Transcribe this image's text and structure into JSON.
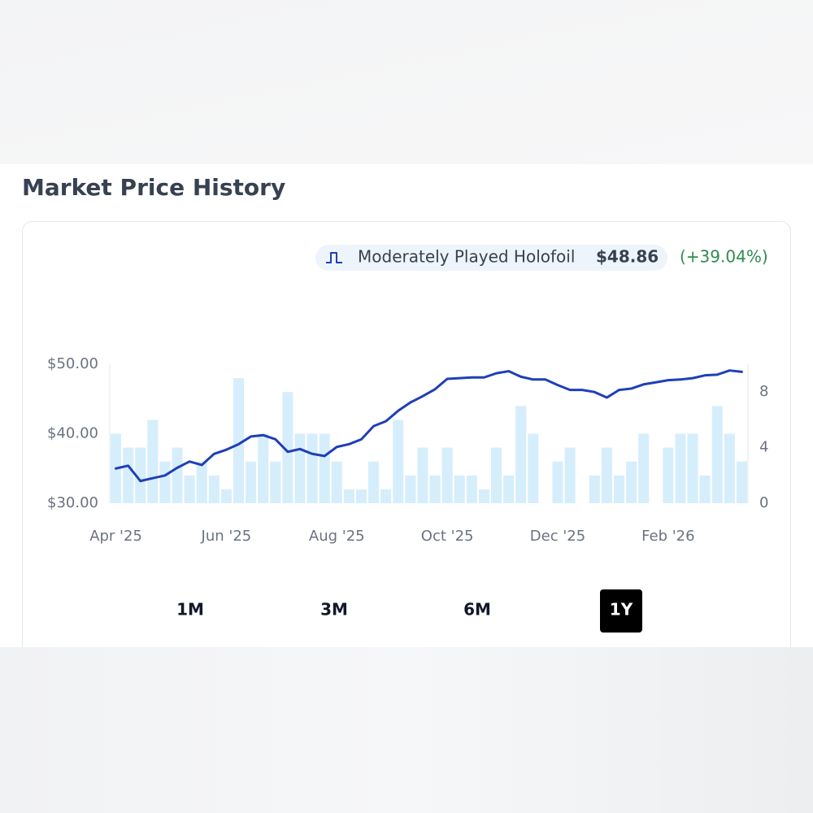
{
  "header": {
    "title": "Market Price History"
  },
  "chart_data": {
    "type": "line",
    "price_label": "$48.86",
    "change_label": "(+39.04%)",
    "categories": [
      "Apr '25",
      null,
      null,
      null,
      null,
      null,
      null,
      null,
      null,
      "Jun '25",
      null,
      null,
      null,
      null,
      null,
      null,
      null,
      null,
      "Aug '25",
      null,
      null,
      null,
      null,
      null,
      null,
      null,
      null,
      "Oct '25",
      null,
      null,
      null,
      null,
      null,
      null,
      null,
      null,
      "Dec '25",
      null,
      null,
      null,
      null,
      null,
      null,
      null,
      null,
      "Feb '26",
      null,
      null,
      null,
      null,
      null,
      null
    ],
    "series": [
      {
        "name": "Moderately Played Holofoil",
        "type": "line",
        "color": "#1f3fb8",
        "values": [
          35.0,
          35.4,
          33.2,
          33.6,
          34.0,
          35.1,
          36.0,
          35.5,
          37.1,
          37.7,
          38.5,
          39.6,
          39.8,
          39.2,
          37.4,
          37.8,
          37.1,
          36.8,
          38.1,
          38.5,
          39.2,
          41.1,
          41.8,
          43.3,
          44.5,
          45.4,
          46.4,
          47.9,
          48.0,
          48.1,
          48.1,
          48.7,
          49.0,
          48.2,
          47.8,
          47.8,
          47.0,
          46.3,
          46.3,
          46.0,
          45.2,
          46.3,
          46.5,
          47.1,
          47.4,
          47.7,
          47.8,
          48.0,
          48.4,
          48.5,
          49.1,
          48.9
        ]
      },
      {
        "type": "bar",
        "axis": "y2",
        "color": "#d6eefc",
        "values": [
          5,
          4,
          4,
          6,
          3,
          4,
          2,
          3,
          2,
          1,
          9,
          3,
          5,
          3,
          8,
          5,
          5,
          5,
          3,
          1,
          1,
          3,
          1,
          6,
          2,
          4,
          2,
          4,
          2,
          2,
          1,
          4,
          2,
          7,
          5,
          0,
          3,
          4,
          0,
          2,
          4,
          2,
          3,
          5,
          0,
          4,
          5,
          5,
          2,
          7,
          5,
          3
        ]
      }
    ],
    "ylim": [
      30,
      50
    ],
    "yticks": [
      {
        "value": 30,
        "label": "$30.00"
      },
      {
        "value": 40,
        "label": "$40.00"
      },
      {
        "value": 50,
        "label": "$50.00"
      }
    ],
    "y2lim": [
      0,
      10
    ],
    "y2ticks": [
      0,
      4,
      8
    ],
    "grid": false
  },
  "range_buttons": [
    "1M",
    "3M",
    "6M",
    "1Y"
  ],
  "selected_range": "1Y"
}
